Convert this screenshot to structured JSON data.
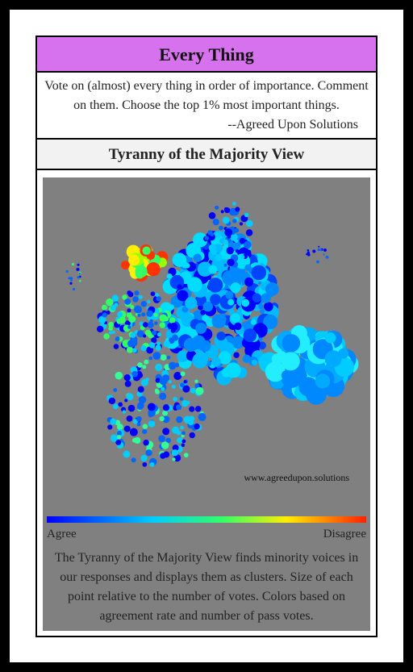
{
  "header": {
    "title": "Every Thing"
  },
  "description": {
    "lines": [
      "Vote on (almost) every thing in order of importance. Comment",
      "on them. Choose the top 1% most important things."
    ],
    "attribution": "--Agreed Upon Solutions"
  },
  "view": {
    "title": "Tyranny of the Majority View",
    "watermark": "www.agreedupon.solutions",
    "scale": {
      "min_label": "Agree",
      "max_label": "Disagree"
    },
    "caption": [
      "The Tyranny of the Majority View finds minority voices in",
      "our responses and displays them as clusters. Size of each",
      "point relative to the number of votes. Colors based on",
      "agreement rate and number of pass votes."
    ]
  }
}
